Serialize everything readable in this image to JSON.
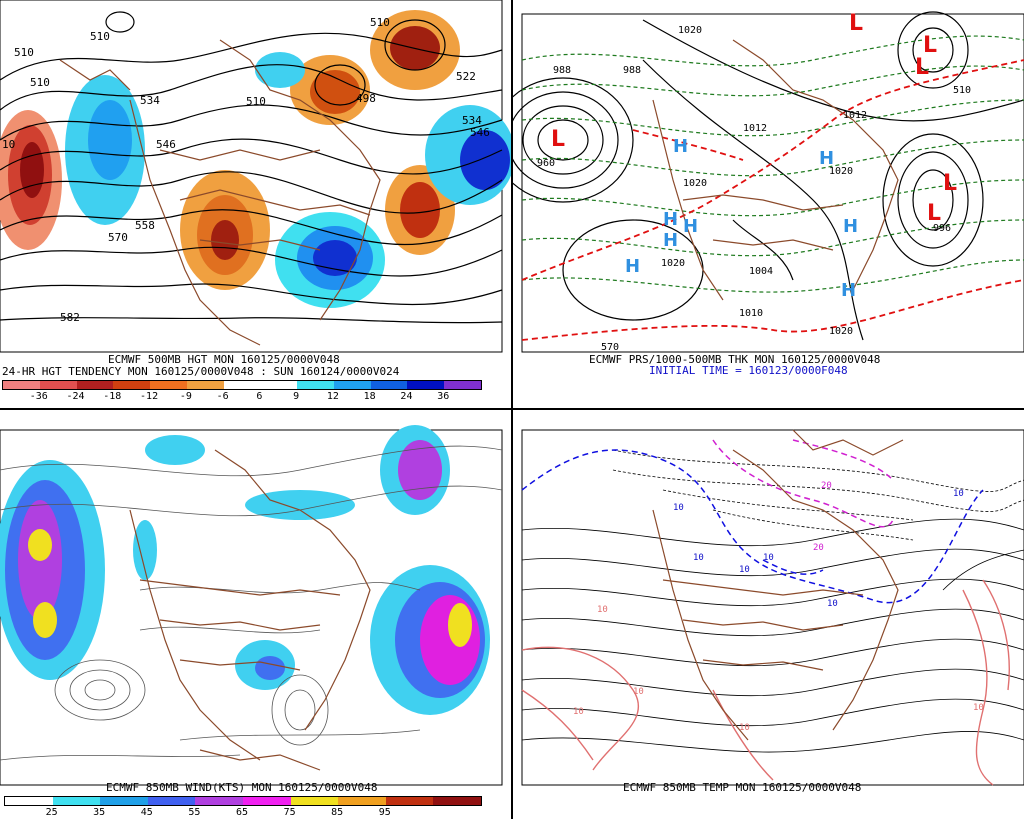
{
  "panels": {
    "top_left": {
      "caption_line1": "ECMWF 500MB HGT MON 160125/0000V048",
      "caption_line2": "24-HR HGT TENDENCY MON 160125/0000V048 : SUN 160124/0000V024",
      "contour_labels": [
        "510",
        "510",
        "510",
        "510",
        "534",
        "546",
        "570",
        "558",
        "582",
        "498",
        "522",
        "534",
        "546",
        "510",
        "10"
      ],
      "colorbar_colors": [
        "#f08080",
        "#e05050",
        "#b02020",
        "#d04010",
        "#f07020",
        "#f0a040",
        "#ffffff",
        "#ffffff",
        "#40e0f0",
        "#20a0f0",
        "#1060e0",
        "#0010c0",
        "#8030d0"
      ],
      "colorbar_ticks": [
        "-36",
        "-24",
        "-18",
        "-12",
        "-9",
        "-6",
        "6",
        "9",
        "12",
        "18",
        "24",
        "36"
      ]
    },
    "top_right": {
      "caption_line1": "ECMWF PRS/1000-500MB THK MON 160125/0000V048",
      "caption_line2": "INITIAL TIME = 160123/0000F048",
      "pressure_labels": [
        "988",
        "988",
        "960",
        "1020",
        "1020",
        "1004",
        "1012",
        "1020",
        "1020",
        "996",
        "1012",
        "1010",
        "1020",
        "570",
        "510"
      ],
      "low_symbol": "L",
      "high_symbol": "H"
    },
    "bottom_left": {
      "caption_line1": "ECMWF 850MB WIND(KTS) MON 160125/0000V048",
      "colorbar_colors": [
        "#ffffff",
        "#40e0f0",
        "#20a0e8",
        "#4060f0",
        "#b040e0",
        "#f020f0",
        "#f0e020",
        "#f0a020",
        "#c03010",
        "#901010"
      ],
      "colorbar_ticks": [
        "25",
        "35",
        "45",
        "55",
        "65",
        "75",
        "85",
        "95"
      ]
    },
    "bottom_right": {
      "caption_line1": "ECMWF 850MB TEMP MON 160125/0000V048",
      "temp_labels": [
        "10",
        "10",
        "10",
        "20",
        "10",
        "10",
        "10",
        "10",
        "10",
        "10",
        "10",
        "20",
        "10"
      ]
    }
  }
}
